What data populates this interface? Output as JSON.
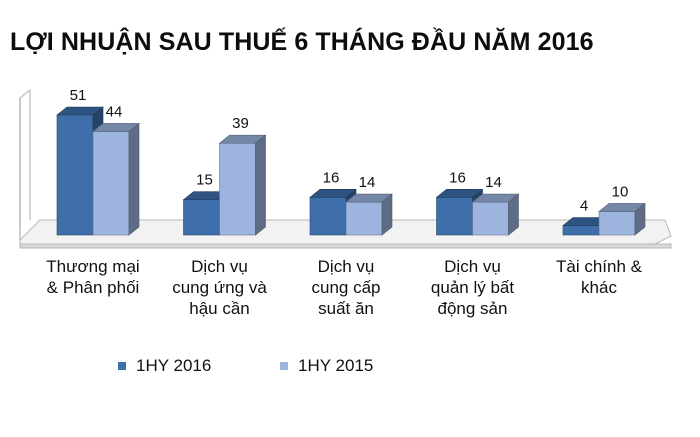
{
  "chart_data": {
    "type": "bar",
    "title": "LỢI NHUẬN SAU THUẾ 6 THÁNG ĐẦU NĂM 2016",
    "categories": [
      [
        "Thương mại",
        "& Phân phối"
      ],
      [
        "Dịch vụ",
        "cung ứng và",
        "hậu cần"
      ],
      [
        "Dịch vụ",
        "cung cấp",
        "suất ăn"
      ],
      [
        "Dịch vụ",
        "quản lý bất",
        "động sản"
      ],
      [
        "Tài chính &",
        "khác"
      ]
    ],
    "series": [
      {
        "name": "1HY 2016",
        "values": [
          51,
          15,
          16,
          16,
          4
        ],
        "color": "#3f6faa"
      },
      {
        "name": "1HY 2015",
        "values": [
          44,
          39,
          14,
          14,
          10
        ],
        "color": "#9cb4de"
      }
    ],
    "ylim": [
      0,
      55
    ],
    "grid": false,
    "legend": "bottom",
    "style": "3d-clustered-bar"
  }
}
